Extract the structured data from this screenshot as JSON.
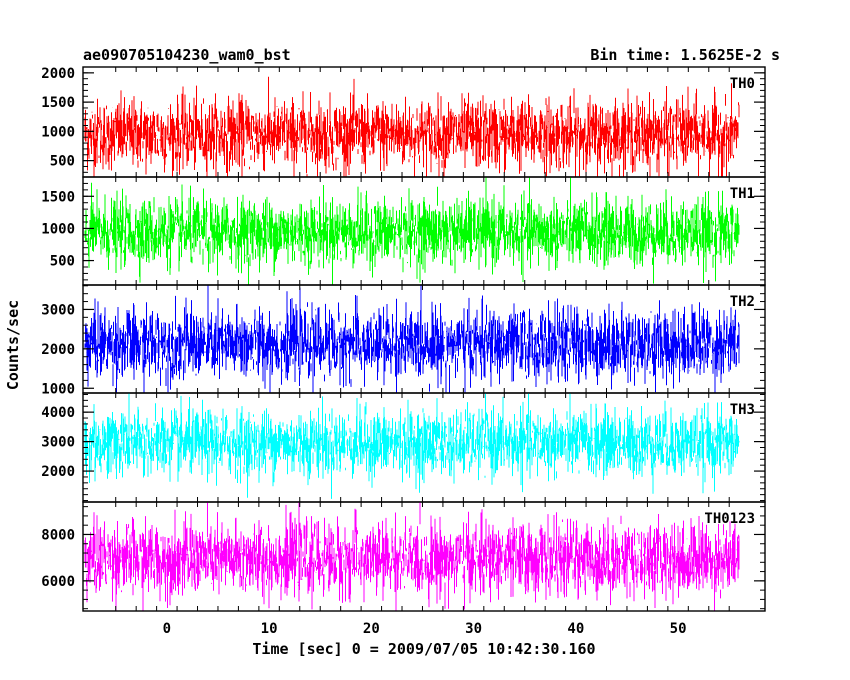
{
  "header": {
    "left": "ae090705104230_wam0_bst",
    "right": "Bin time: 1.5625E-2 s"
  },
  "chart_data": {
    "type": "line",
    "xlabel": "Time [sec] 0 = 2009/07/05 10:42:30.160",
    "ylabel": "Counts/sec",
    "xlim": [
      -8.2,
      58.5
    ],
    "data_x_range": [
      -8.0,
      56.0
    ],
    "bin_time": 0.015625,
    "x_ticks": [
      {
        "v": 0,
        "label": "0"
      },
      {
        "v": 10,
        "label": "10"
      },
      {
        "v": 20,
        "label": "20"
      },
      {
        "v": 30,
        "label": "30"
      },
      {
        "v": 40,
        "label": "40"
      },
      {
        "v": 50,
        "label": "50"
      }
    ],
    "panels": [
      {
        "name": "TH0",
        "color": "#ff0000",
        "ylim": [
          220,
          2100
        ],
        "mean": 950,
        "sigma": 300,
        "ticks": [
          {
            "v": 500,
            "label": "500"
          },
          {
            "v": 1000,
            "label": "1000"
          },
          {
            "v": 1500,
            "label": "1500"
          },
          {
            "v": 2000,
            "label": "2000"
          }
        ]
      },
      {
        "name": "TH1",
        "color": "#00ff00",
        "ylim": [
          120,
          1800
        ],
        "mean": 940,
        "sigma": 260,
        "ticks": [
          {
            "v": 500,
            "label": "500"
          },
          {
            "v": 1000,
            "label": "1000"
          },
          {
            "v": 1500,
            "label": "1500"
          }
        ]
      },
      {
        "name": "TH2",
        "color": "#0000ff",
        "ylim": [
          880,
          3620
        ],
        "mean": 2120,
        "sigma": 450,
        "ticks": [
          {
            "v": 1000,
            "label": "1000"
          },
          {
            "v": 2000,
            "label": "2000"
          },
          {
            "v": 3000,
            "label": "3000"
          }
        ]
      },
      {
        "name": "TH3",
        "color": "#00ffff",
        "ylim": [
          950,
          4650
        ],
        "mean": 2950,
        "sigma": 560,
        "ticks": [
          {
            "v": 2000,
            "label": "2000"
          },
          {
            "v": 3000,
            "label": "3000"
          },
          {
            "v": 4000,
            "label": "4000"
          }
        ]
      },
      {
        "name": "TH0123",
        "color": "#ff00ff",
        "ylim": [
          4700,
          9400
        ],
        "mean": 6950,
        "sigma": 780,
        "ticks": [
          {
            "v": 6000,
            "label": "6000"
          },
          {
            "v": 8000,
            "label": "8000"
          }
        ]
      }
    ]
  }
}
